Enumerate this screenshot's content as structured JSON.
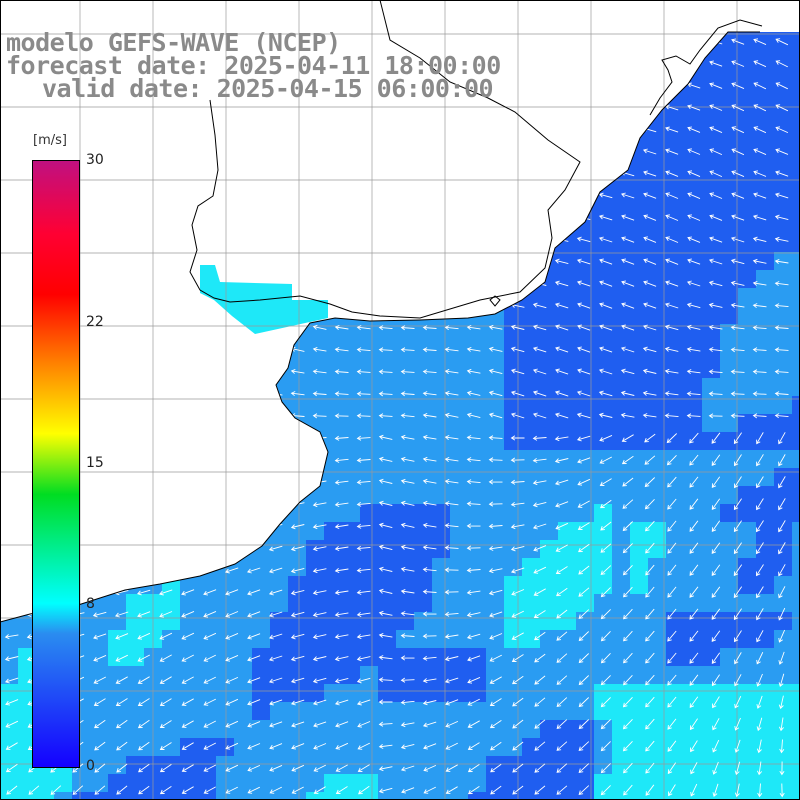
{
  "title": {
    "model": "modelo GEFS-WAVE (NCEP)",
    "forecast": "forecast date: 2025-04-11 18:00:00",
    "valid": "valid date: 2025-04-15 06:00:00"
  },
  "colorbar": {
    "unit": "[m/s]",
    "min": 0,
    "max": 30,
    "ticks": [
      {
        "label": "30",
        "value": 30
      },
      {
        "label": "22",
        "value": 22
      },
      {
        "label": "15",
        "value": 15
      },
      {
        "label": "8",
        "value": 8
      },
      {
        "label": "0",
        "value": 0
      }
    ]
  },
  "colors": {
    "ocean_dark": "#1f5ef0",
    "ocean_mid": "#2a9cf2",
    "ocean_light": "#1ee8f8",
    "land": "#ffffff",
    "arrow": "#ffffff",
    "grid": "#9a9a9a",
    "coastline": "#000000"
  }
}
